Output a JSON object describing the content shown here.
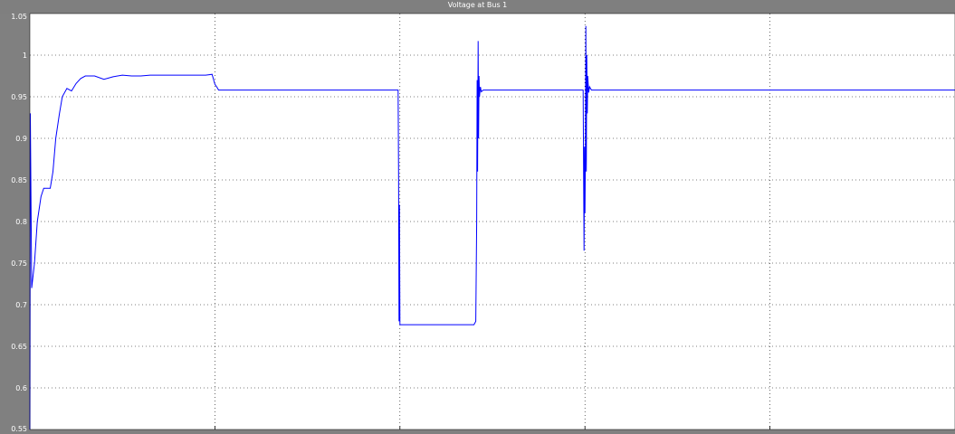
{
  "chart_data": {
    "type": "line",
    "title": "Voltage at Bus 1",
    "xlabel": "",
    "ylabel": "",
    "ylim": [
      0.55,
      1.05
    ],
    "xlim": [
      0,
      10
    ],
    "grid": true,
    "yticks": [
      "0.55",
      "0.6",
      "0.65",
      "0.7",
      "0.75",
      "0.8",
      "0.85",
      "0.9",
      "0.95",
      "1",
      "1.05"
    ],
    "xtick_values": [
      2,
      4,
      6,
      8
    ],
    "colors": {
      "line": "#0000ff",
      "plot_bg": "#ffffff",
      "frame": "#808080",
      "grid": "#000000"
    },
    "series": [
      {
        "x": [
          0,
          0.005,
          0.02,
          0.05,
          0.08,
          0.12,
          0.15,
          0.18,
          0.22,
          0.25,
          0.28,
          0.32,
          0.35,
          0.4,
          0.45,
          0.5,
          0.55,
          0.6,
          0.65,
          0.7,
          0.8,
          0.9,
          1.0,
          1.1,
          1.2,
          1.3,
          1.4,
          1.5,
          1.6,
          1.7,
          1.8,
          1.9,
          1.97,
          2.0,
          2.02,
          2.04,
          2.06,
          3.98,
          3.985,
          3.99,
          3.995,
          4.0,
          4.01,
          4.05,
          4.8,
          4.82,
          4.83,
          4.835,
          4.84,
          4.845,
          4.85,
          4.855,
          4.86,
          4.87,
          4.88,
          4.9,
          5.98,
          5.99,
          5.995,
          6.0,
          6.005,
          6.01,
          6.015,
          6.02,
          6.025,
          6.03,
          6.04,
          6.05,
          6.07,
          10
        ],
        "y": [
          0.55,
          0.93,
          0.72,
          0.75,
          0.8,
          0.83,
          0.84,
          0.84,
          0.84,
          0.86,
          0.9,
          0.93,
          0.95,
          0.96,
          0.957,
          0.966,
          0.972,
          0.975,
          0.975,
          0.975,
          0.971,
          0.974,
          0.976,
          0.975,
          0.975,
          0.976,
          0.976,
          0.976,
          0.976,
          0.976,
          0.976,
          0.976,
          0.977,
          0.965,
          0.962,
          0.958,
          0.958,
          0.958,
          0.86,
          0.68,
          0.82,
          0.676,
          0.676,
          0.676,
          0.676,
          0.68,
          0.8,
          0.97,
          0.86,
          1.017,
          0.9,
          0.975,
          0.95,
          0.962,
          0.956,
          0.958,
          0.958,
          0.765,
          0.89,
          0.81,
          0.88,
          1.035,
          0.86,
          1.0,
          0.93,
          0.975,
          0.955,
          0.962,
          0.958,
          0.958
        ]
      }
    ]
  }
}
